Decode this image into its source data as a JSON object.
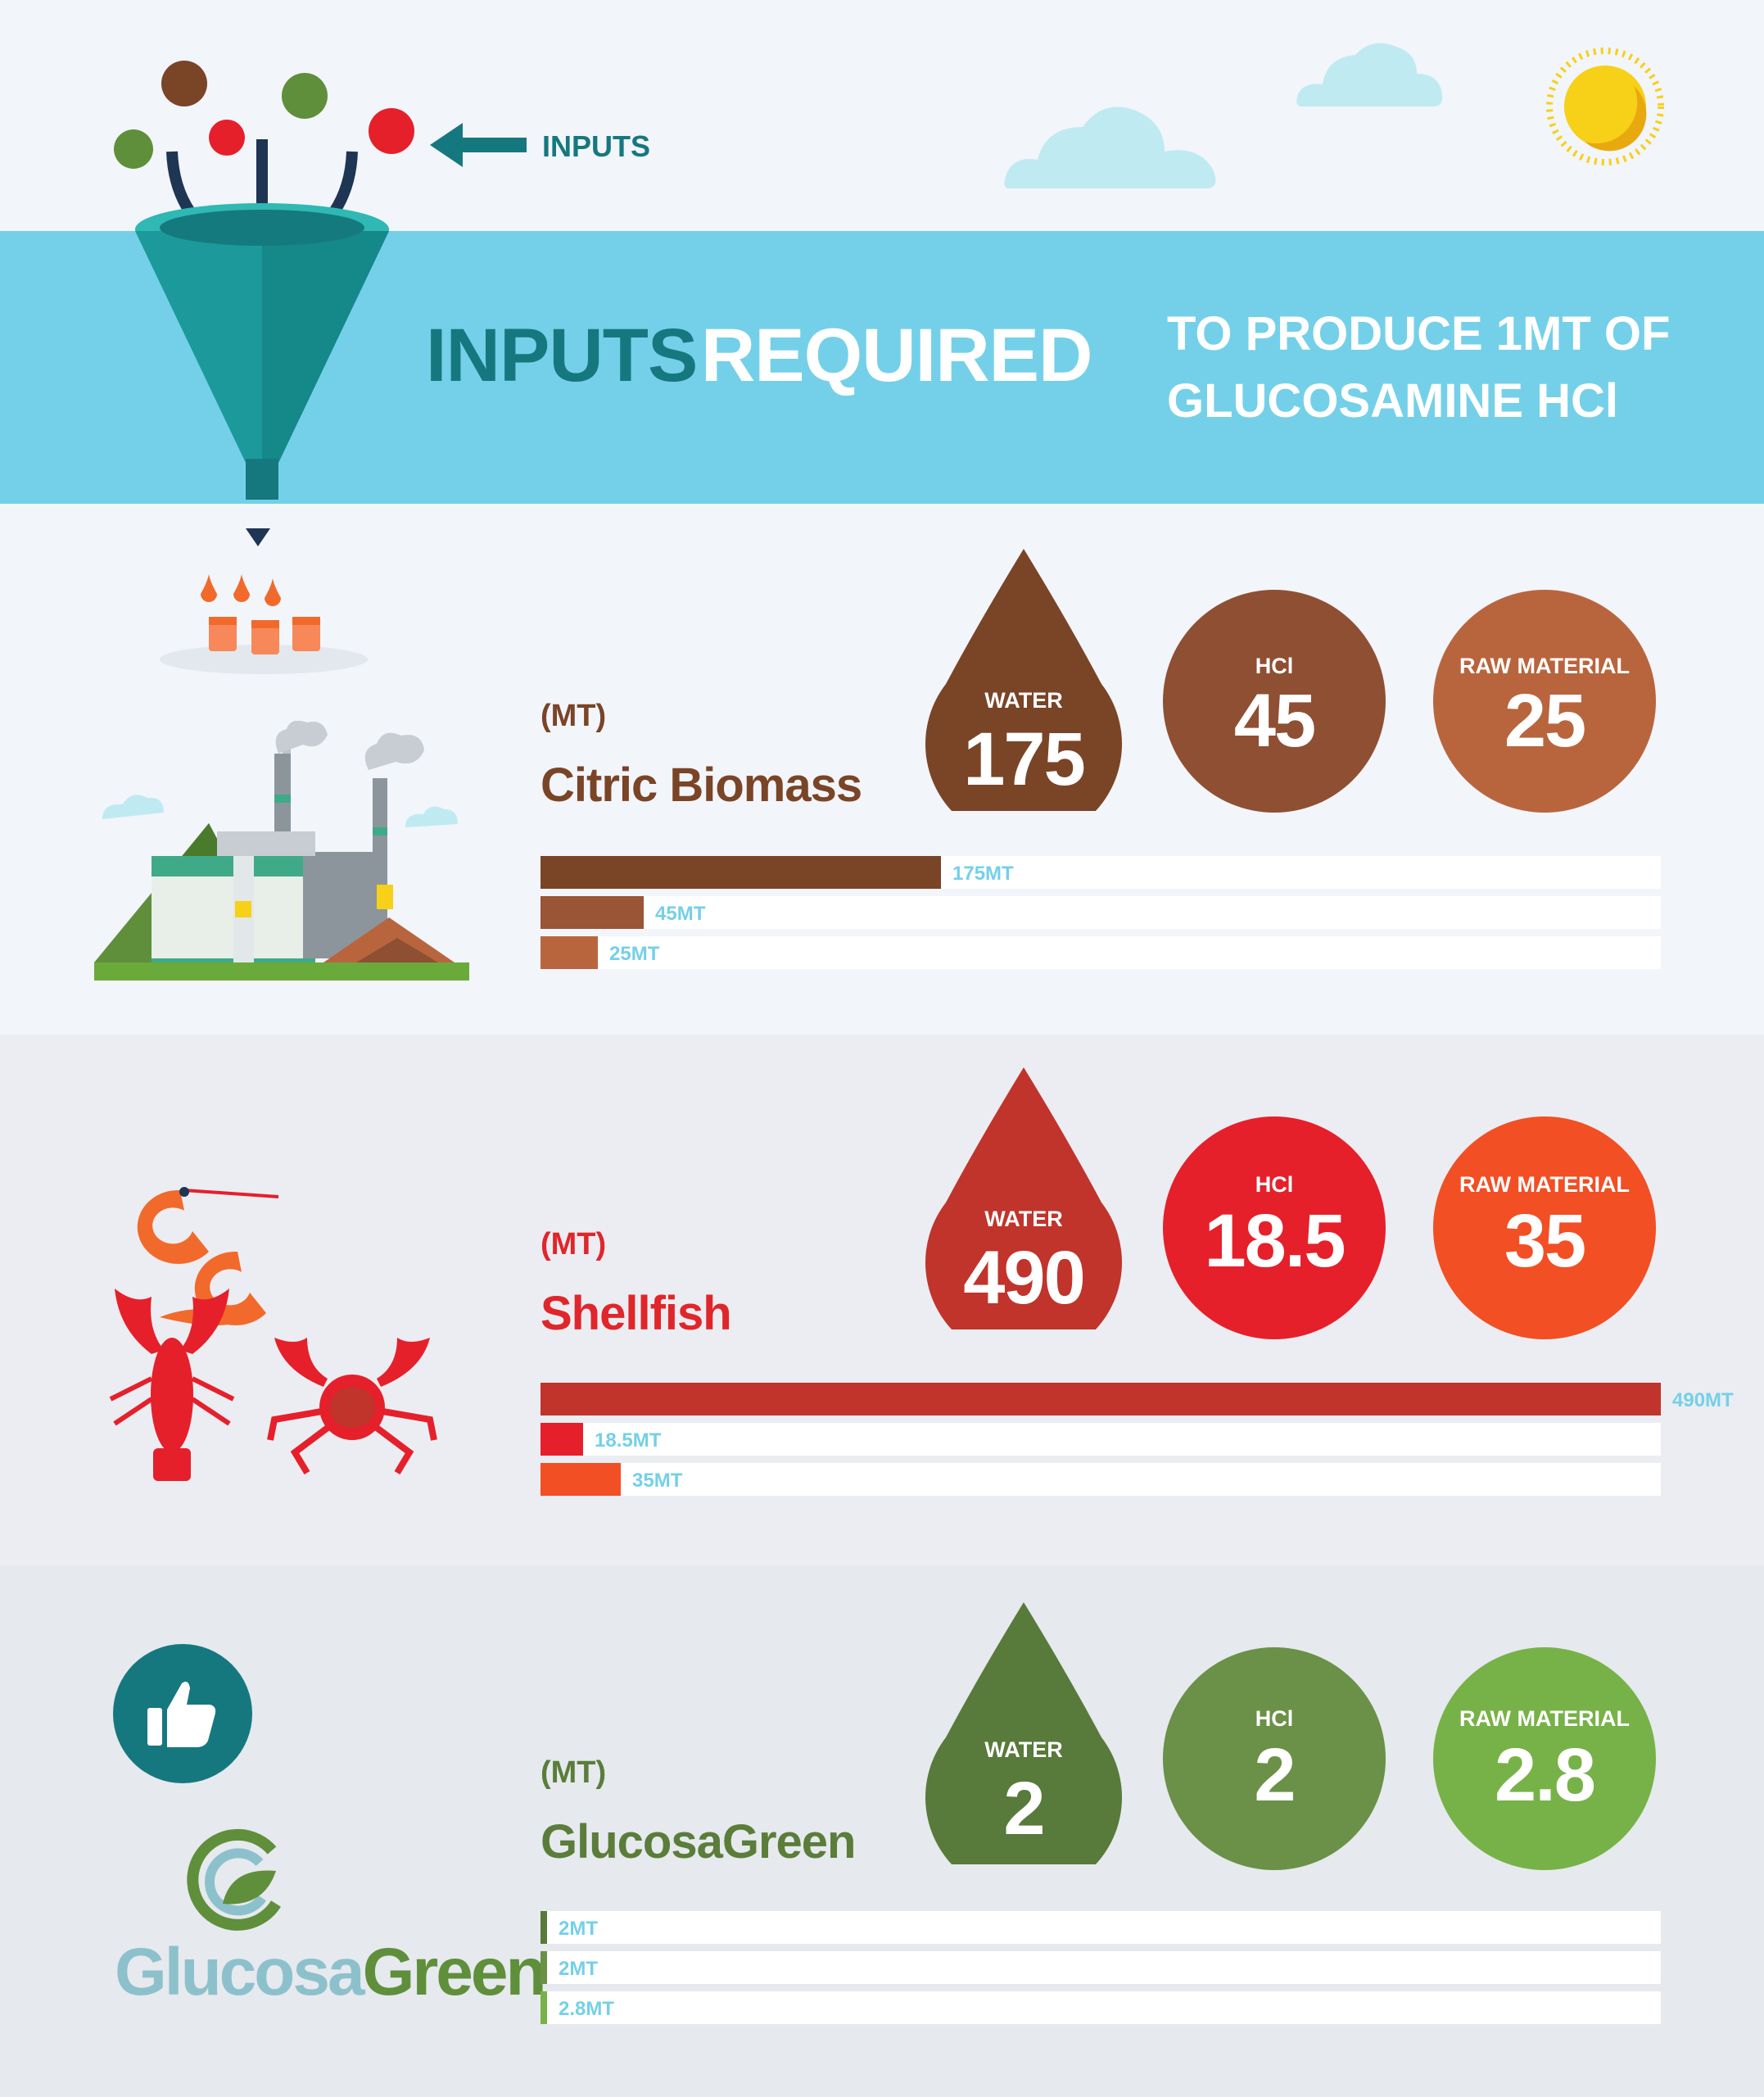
{
  "header": {
    "inputs_label": "INPUTS",
    "title_part1": "INPUTS",
    "title_part2": "REQUIRED",
    "subtitle_line1": "TO PRODUCE 1MT OF",
    "subtitle_line2": "GLUCOSAMINE HCl"
  },
  "colors": {
    "banner": "#74d0e8",
    "teal": "#16787f",
    "bar_label": "#74d0e8"
  },
  "sections": [
    {
      "unit": "(MT)",
      "name": "Citric Biomass",
      "name_color": "#7a4427",
      "icon": "factory-icon",
      "badges": [
        {
          "label": "WATER",
          "value": "175",
          "color": "#7a4427"
        },
        {
          "label": "HCl",
          "value": "45",
          "color": "#8f4f33"
        },
        {
          "label": "RAW MATERIAL",
          "value": "25",
          "color": "#b8653e"
        }
      ],
      "bars": [
        {
          "value": 175,
          "label": "175MT",
          "color": "#7a4427"
        },
        {
          "value": 45,
          "label": "45MT",
          "color": "#9a5436"
        },
        {
          "value": 25,
          "label": "25MT",
          "color": "#b8653e"
        }
      ]
    },
    {
      "unit": "(MT)",
      "name": "Shellfish",
      "name_color": "#e0262b",
      "icon": "shellfish-icon",
      "badges": [
        {
          "label": "WATER",
          "value": "490",
          "color": "#c0342b"
        },
        {
          "label": "HCl",
          "value": "18.5",
          "color": "#e5202b"
        },
        {
          "label": "RAW MATERIAL",
          "value": "35",
          "color": "#f24f24"
        }
      ],
      "bars": [
        {
          "value": 490,
          "label": "490MT",
          "color": "#c0342b"
        },
        {
          "value": 18.5,
          "label": "18.5MT",
          "color": "#e5202b"
        },
        {
          "value": 35,
          "label": "35MT",
          "color": "#f24f24"
        }
      ]
    },
    {
      "unit": "(MT)",
      "name": "GlucosaGreen",
      "name_color": "#5a7d3a",
      "icon": "thumbs-up-icon",
      "logo_text_a": "Glucosa",
      "logo_text_b": "Green",
      "badges": [
        {
          "label": "WATER",
          "value": "2",
          "color": "#587a3a"
        },
        {
          "label": "HCl",
          "value": "2",
          "color": "#6a9147"
        },
        {
          "label": "RAW MATERIAL",
          "value": "2.8",
          "color": "#77b248"
        }
      ],
      "bars": [
        {
          "value": 2,
          "label": "2MT",
          "color": "#587a3a"
        },
        {
          "value": 2,
          "label": "2MT",
          "color": "#6a9147"
        },
        {
          "value": 2.8,
          "label": "2.8MT",
          "color": "#77b248"
        }
      ]
    }
  ],
  "chart_data": {
    "type": "bar",
    "orientation": "horizontal",
    "categories": [
      "WATER",
      "HCl",
      "RAW MATERIAL"
    ],
    "series": [
      {
        "name": "Citric Biomass",
        "values": [
          175,
          45,
          25
        ]
      },
      {
        "name": "Shellfish",
        "values": [
          490,
          18.5,
          35
        ]
      },
      {
        "name": "GlucosaGreen",
        "values": [
          2,
          2,
          2.8
        ]
      }
    ],
    "title": "INPUTS REQUIRED TO PRODUCE 1MT OF GLUCOSAMINE HCl",
    "unit": "(MT)",
    "xlim": [
      0,
      490
    ]
  }
}
